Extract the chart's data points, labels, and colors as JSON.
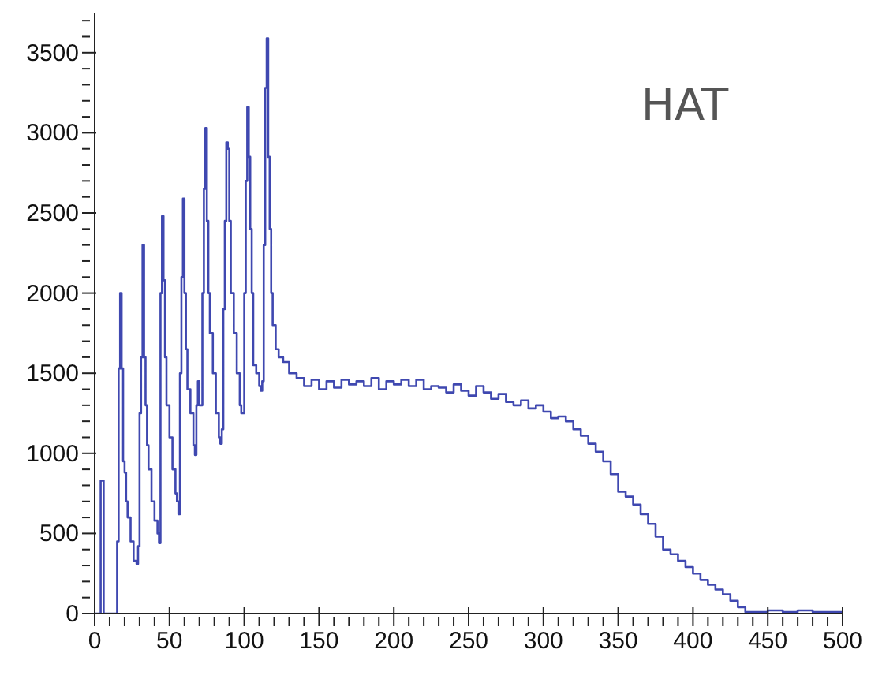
{
  "chart_data": {
    "type": "step",
    "title": "HAT",
    "x": [
      0,
      3,
      4,
      5,
      6,
      14,
      15,
      16,
      17,
      18,
      19,
      20,
      21,
      22,
      24,
      26,
      28,
      29,
      30,
      31,
      32,
      33,
      34,
      35,
      36,
      38,
      40,
      42,
      43,
      44,
      45,
      46,
      47,
      48,
      50,
      52,
      54,
      55,
      56,
      57,
      58,
      59,
      60,
      61,
      62,
      64,
      66,
      67,
      68,
      69,
      70,
      72,
      73,
      74,
      75,
      76,
      77,
      79,
      81,
      83,
      84,
      85,
      86,
      87,
      88,
      89,
      90,
      91,
      93,
      95,
      97,
      98,
      99,
      100,
      101,
      102,
      103,
      104,
      105,
      106,
      108,
      110,
      111,
      112,
      113,
      114,
      115,
      116,
      117,
      118,
      119,
      121,
      123,
      126,
      130,
      135,
      140,
      145,
      150,
      155,
      160,
      165,
      170,
      175,
      180,
      185,
      190,
      195,
      200,
      205,
      210,
      215,
      220,
      225,
      230,
      235,
      240,
      245,
      250,
      255,
      260,
      265,
      270,
      275,
      280,
      285,
      290,
      295,
      300,
      305,
      310,
      315,
      320,
      325,
      330,
      335,
      340,
      345,
      350,
      355,
      360,
      365,
      370,
      375,
      380,
      385,
      390,
      395,
      400,
      405,
      410,
      415,
      420,
      425,
      430,
      435,
      440,
      450,
      460,
      470,
      480,
      490,
      500
    ],
    "series": [
      {
        "color": "#3f48b0",
        "values": [
          0,
          0,
          830,
          830,
          0,
          0,
          450,
          1530,
          2000,
          1530,
          950,
          880,
          700,
          600,
          450,
          330,
          310,
          420,
          1250,
          1600,
          2300,
          1600,
          1300,
          1050,
          900,
          700,
          580,
          500,
          440,
          2000,
          2480,
          2080,
          1600,
          1300,
          1100,
          900,
          750,
          700,
          620,
          1500,
          2100,
          2590,
          2000,
          1650,
          1400,
          1250,
          1050,
          990,
          1300,
          1450,
          1300,
          2000,
          2650,
          3030,
          2450,
          2000,
          1750,
          1500,
          1250,
          1100,
          1060,
          1150,
          1900,
          2450,
          2940,
          2900,
          2450,
          2000,
          1750,
          1500,
          1300,
          1250,
          1250,
          2000,
          2700,
          3160,
          2850,
          2400,
          2000,
          1550,
          1500,
          1420,
          1390,
          1450,
          2300,
          3280,
          3590,
          2850,
          2400,
          2000,
          1800,
          1650,
          1600,
          1570,
          1500,
          1470,
          1420,
          1460,
          1400,
          1450,
          1410,
          1460,
          1430,
          1450,
          1420,
          1470,
          1400,
          1450,
          1430,
          1460,
          1420,
          1460,
          1400,
          1420,
          1410,
          1380,
          1430,
          1390,
          1360,
          1420,
          1380,
          1340,
          1370,
          1320,
          1300,
          1330,
          1280,
          1300,
          1260,
          1220,
          1230,
          1200,
          1150,
          1110,
          1060,
          1010,
          950,
          870,
          760,
          730,
          680,
          620,
          560,
          480,
          400,
          370,
          330,
          290,
          250,
          210,
          180,
          150,
          120,
          80,
          40,
          10,
          10,
          20,
          10,
          20,
          10,
          10,
          10
        ]
      }
    ],
    "xlim": [
      0,
      500
    ],
    "xticks": [
      0,
      {
        "value": 10,
        "label": null
      },
      {
        "value": 20,
        "label": null
      },
      {
        "value": 30,
        "label": null
      },
      {
        "value": 40,
        "label": null
      },
      50,
      {
        "value": 60,
        "label": null
      },
      {
        "value": 70,
        "label": null
      },
      {
        "value": 80,
        "label": null
      },
      {
        "value": 90,
        "label": null
      },
      100,
      {
        "value": 110,
        "label": null
      },
      {
        "value": 120,
        "label": null
      },
      {
        "value": 130,
        "label": null
      },
      {
        "value": 140,
        "label": null
      },
      150,
      {
        "value": 160,
        "label": null
      },
      {
        "value": 170,
        "label": null
      },
      {
        "value": 180,
        "label": null
      },
      {
        "value": 190,
        "label": null
      },
      200,
      {
        "value": 210,
        "label": null
      },
      {
        "value": 220,
        "label": null
      },
      {
        "value": 230,
        "label": null
      },
      {
        "value": 240,
        "label": null
      },
      250,
      {
        "value": 260,
        "label": null
      },
      {
        "value": 270,
        "label": null
      },
      {
        "value": 280,
        "label": null
      },
      {
        "value": 290,
        "label": null
      },
      300,
      {
        "value": 310,
        "label": null
      },
      {
        "value": 320,
        "label": null
      },
      {
        "value": 330,
        "label": null
      },
      {
        "value": 340,
        "label": null
      },
      350,
      {
        "value": 360,
        "label": null
      },
      {
        "value": 370,
        "label": null
      },
      {
        "value": 380,
        "label": null
      },
      {
        "value": 390,
        "label": null
      },
      400,
      {
        "value": 410,
        "label": null
      },
      {
        "value": 420,
        "label": null
      },
      {
        "value": 430,
        "label": null
      },
      {
        "value": 440,
        "label": null
      },
      450,
      {
        "value": 460,
        "label": null
      },
      {
        "value": 470,
        "label": null
      },
      {
        "value": 480,
        "label": null
      },
      {
        "value": 490,
        "label": null
      },
      500
    ],
    "ylim": [
      0,
      3750
    ],
    "yticks": [
      0,
      {
        "value": 100,
        "label": null
      },
      {
        "value": 200,
        "label": null
      },
      {
        "value": 300,
        "label": null
      },
      {
        "value": 400,
        "label": null
      },
      500,
      {
        "value": 600,
        "label": null
      },
      {
        "value": 700,
        "label": null
      },
      {
        "value": 800,
        "label": null
      },
      {
        "value": 900,
        "label": null
      },
      1000,
      {
        "value": 1100,
        "label": null
      },
      {
        "value": 1200,
        "label": null
      },
      {
        "value": 1300,
        "label": null
      },
      {
        "value": 1400,
        "label": null
      },
      1500,
      {
        "value": 1600,
        "label": null
      },
      {
        "value": 1700,
        "label": null
      },
      {
        "value": 1800,
        "label": null
      },
      {
        "value": 1900,
        "label": null
      },
      2000,
      {
        "value": 2100,
        "label": null
      },
      {
        "value": 2200,
        "label": null
      },
      {
        "value": 2300,
        "label": null
      },
      {
        "value": 2400,
        "label": null
      },
      2500,
      {
        "value": 2600,
        "label": null
      },
      {
        "value": 2700,
        "label": null
      },
      {
        "value": 2800,
        "label": null
      },
      {
        "value": 2900,
        "label": null
      },
      3000,
      {
        "value": 3100,
        "label": null
      },
      {
        "value": 3200,
        "label": null
      },
      {
        "value": 3300,
        "label": null
      },
      {
        "value": 3400,
        "label": null
      },
      3500,
      {
        "value": 3600,
        "label": null
      },
      {
        "value": 3700,
        "label": null
      }
    ],
    "grid": false,
    "legend": false
  }
}
